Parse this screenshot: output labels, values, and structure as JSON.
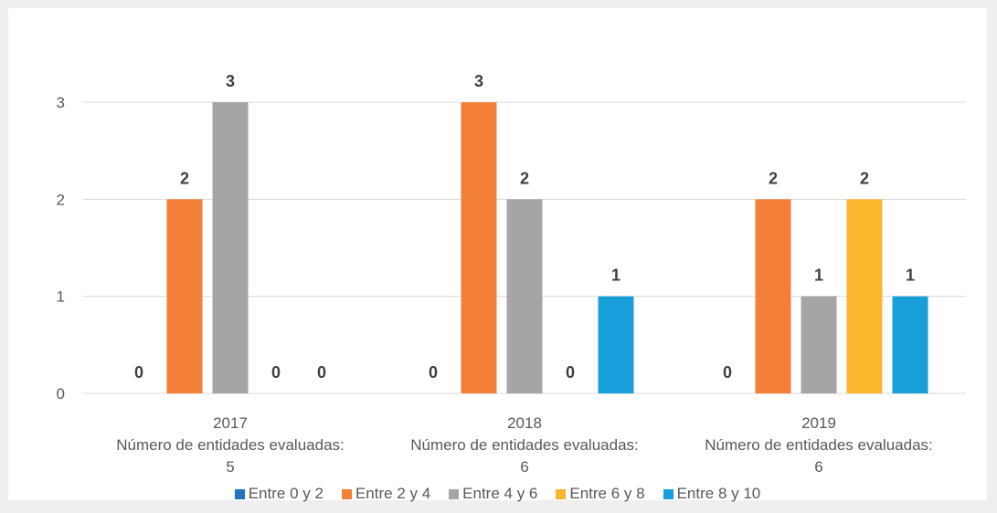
{
  "chart_data": {
    "type": "bar",
    "categories": [
      "2017",
      "2018",
      "2019"
    ],
    "category_sublabels": [
      "Número de entidades evaluadas: 5",
      "Número de entidades evaluadas: 6",
      "Número de entidades evaluadas: 6"
    ],
    "series": [
      {
        "name": "Entre 0 y 2",
        "color": "#1f77c4",
        "values": [
          0,
          0,
          0
        ]
      },
      {
        "name": "Entre 2 y 4",
        "color": "#f48037",
        "values": [
          2,
          3,
          2
        ]
      },
      {
        "name": "Entre 4 y 6",
        "color": "#a5a5a5",
        "values": [
          3,
          2,
          1
        ]
      },
      {
        "name": "Entre 6 y 8",
        "color": "#fbb62d",
        "values": [
          0,
          0,
          2
        ]
      },
      {
        "name": "Entre 8 y 10",
        "color": "#189ed9",
        "values": [
          0,
          1,
          1
        ]
      }
    ],
    "ylim": [
      0,
      3
    ],
    "yticks": [
      "0",
      "1",
      "2",
      "3"
    ],
    "grid": true,
    "legend_position": "bottom"
  }
}
